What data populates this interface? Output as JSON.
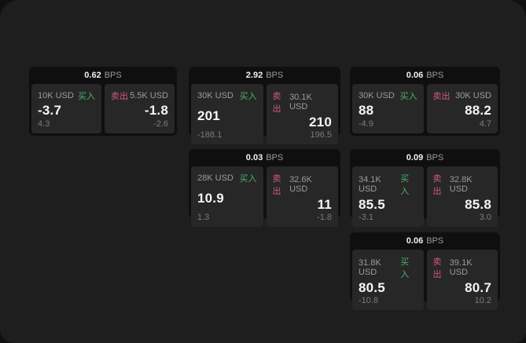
{
  "labels": {
    "bps_unit": "BPS",
    "buy": "买入",
    "sell": "卖出"
  },
  "colors": {
    "buy": "#4fae6d",
    "sell": "#d15a78",
    "page_bg": "#1e1e1e",
    "card_bg": "#0f0f0f",
    "panel_bg": "#272727"
  },
  "cards": [
    {
      "bps": "0.62",
      "buy": {
        "amount": "10K USD",
        "price": "-3.7",
        "sub": "4.3"
      },
      "sell": {
        "amount": "5.5K USD",
        "price": "-1.8",
        "sub": "-2.6"
      }
    },
    {
      "bps": "2.92",
      "buy": {
        "amount": "30K USD",
        "price": "201",
        "sub": "-188.1"
      },
      "sell": {
        "amount": "30.1K USD",
        "price": "210",
        "sub": "196.5"
      }
    },
    {
      "bps": "0.06",
      "buy": {
        "amount": "30K USD",
        "price": "88",
        "sub": "-4.9"
      },
      "sell": {
        "amount": "30K USD",
        "price": "88.2",
        "sub": "4.7"
      }
    },
    {
      "bps": "0.03",
      "buy": {
        "amount": "28K USD",
        "price": "10.9",
        "sub": "1.3"
      },
      "sell": {
        "amount": "32.6K USD",
        "price": "11",
        "sub": "-1.8"
      }
    },
    {
      "bps": "0.09",
      "buy": {
        "amount": "34.1K USD",
        "price": "85.5",
        "sub": "-3.1"
      },
      "sell": {
        "amount": "32.8K USD",
        "price": "85.8",
        "sub": "3.0"
      }
    },
    {
      "bps": "0.06",
      "buy": {
        "amount": "31.8K USD",
        "price": "80.5",
        "sub": "-10.8"
      },
      "sell": {
        "amount": "39.1K USD",
        "price": "80.7",
        "sub": "10.2"
      }
    }
  ]
}
